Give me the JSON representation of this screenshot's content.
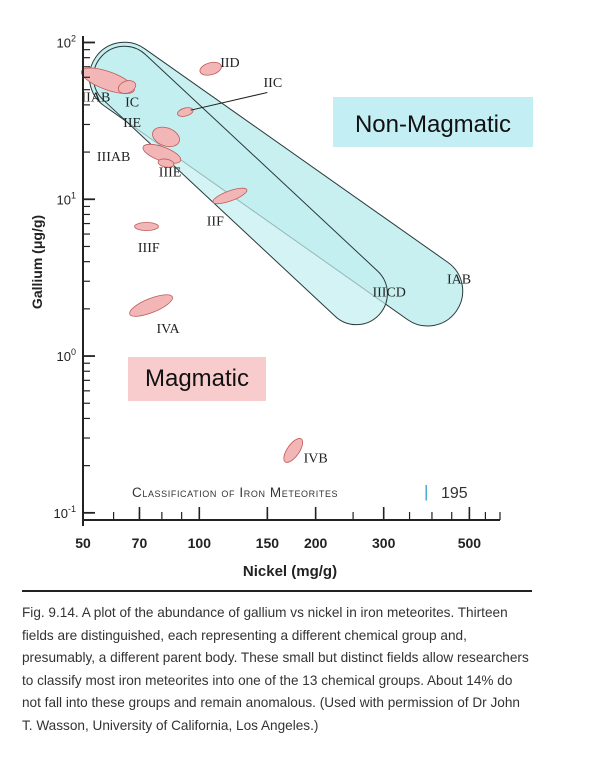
{
  "chart_data": {
    "type": "scatter",
    "xscale": "log",
    "yscale": "log",
    "xlim": [
      50,
      600
    ],
    "ylim": [
      0.09,
      110
    ],
    "xlabel": "Nickel (mg/g)",
    "ylabel": "Gallium (μg/g)",
    "x_ticks": [
      {
        "value": 50,
        "label": "50"
      },
      {
        "value": 70,
        "label": "70"
      },
      {
        "value": 100,
        "label": "100"
      },
      {
        "value": 150,
        "label": "150"
      },
      {
        "value": 200,
        "label": "200"
      },
      {
        "value": 300,
        "label": "300"
      },
      {
        "value": 500,
        "label": "500"
      }
    ],
    "y_ticks": [
      {
        "value": 0.1,
        "base": "10",
        "exp": "-1"
      },
      {
        "value": 1,
        "base": "10",
        "exp": "0"
      },
      {
        "value": 10,
        "base": "10",
        "exp": "1"
      },
      {
        "value": 100,
        "base": "10",
        "exp": "2"
      }
    ],
    "groups": [
      {
        "name": "IIAB",
        "ni": 58,
        "ga": 57,
        "label_ni": 54,
        "label_ga": 42
      },
      {
        "name": "IC",
        "ni": 65,
        "ga": 52,
        "label_ni": 67,
        "label_ga": 39
      },
      {
        "name": "IIE",
        "ni": 82,
        "ga": 25,
        "label_ni": 67,
        "label_ga": 29
      },
      {
        "name": "IIIAB",
        "ni": 80,
        "ga": 19.5,
        "label_ni": 60,
        "label_ga": 17.5
      },
      {
        "name": "IIIE",
        "ni": 82,
        "ga": 17,
        "label_ni": 84,
        "label_ga": 14
      },
      {
        "name": "IID",
        "ni": 107,
        "ga": 68,
        "label_ni": 120,
        "label_ga": 70
      },
      {
        "name": "IIC",
        "ni": 92,
        "ga": 36,
        "label_ni": 155,
        "label_ga": 52
      },
      {
        "name": "IIF",
        "ni": 120,
        "ga": 10.5,
        "label_ni": 110,
        "label_ga": 6.8
      },
      {
        "name": "IIIF",
        "ni": 73,
        "ga": 6.7,
        "label_ni": 74,
        "label_ga": 4.6
      },
      {
        "name": "IVA",
        "ni": 75,
        "ga": 2.1,
        "label_ni": 83,
        "label_ga": 1.4
      },
      {
        "name": "IVB",
        "ni": 175,
        "ga": 0.25,
        "label_ni": 200,
        "label_ga": 0.21
      },
      {
        "name": "IIICD",
        "ni": 250,
        "ga": 3.2,
        "label_ni": 310,
        "label_ga": 2.4
      },
      {
        "name": "IAB",
        "ni": 330,
        "ga": 5.5,
        "label_ni": 470,
        "label_ga": 2.9
      }
    ],
    "annotations": {
      "non_magmatic": "Non-Magmatic",
      "magmatic": "Magmatic"
    },
    "header": {
      "title": "Classification of Iron Meteorites",
      "divider": "|",
      "page": "195"
    }
  },
  "colors": {
    "field_fill": "#f2b6b6",
    "field_stroke": "#c05a5a",
    "nonmag_fill": "#c2eef0",
    "nonmag_stroke": "#2a3a3a",
    "magmatic_bg": "#f8cccc",
    "nonmag_label_bg": "#c2eef4",
    "axis": "#222222"
  },
  "caption": {
    "text": "Fig. 9.14. A plot of the abundance of gallium vs nickel in iron meteorites. Thirteen fields are distinguished, each representing a different chemical group and, presumably, a different parent body. These small but distinct fields allow researchers to classify most iron meteorites into one of the 13 chemical groups. About 14% do not fall into these groups and remain anomalous. (Used with permission of Dr John T. Wasson, University of California, Los Angeles.)"
  }
}
